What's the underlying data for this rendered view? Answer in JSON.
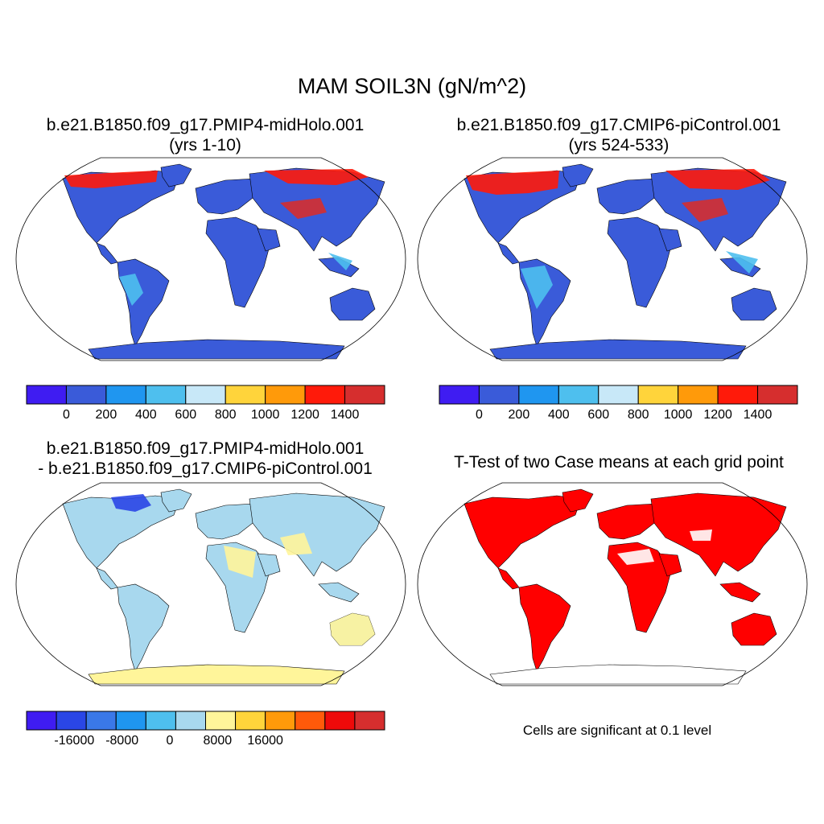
{
  "title": "MAM SOIL3N (gN/m^2)",
  "panels": [
    {
      "id": "midholo",
      "title_lines": [
        "b.e21.B1850.f09_g17.PMIP4-midHolo.001",
        "(yrs 1-10)"
      ],
      "colorbar": {
        "colors": [
          "#3f1cf2",
          "#3a5bd9",
          "#1f96f0",
          "#4ebfee",
          "#c8e8f8",
          "#ffd43b",
          "#ff9a0a",
          "#ff1a0a",
          "#d62e2e"
        ],
        "tick_labels": [
          "0",
          "200",
          "400",
          "600",
          "800",
          "1000",
          "1200",
          "1400"
        ]
      }
    },
    {
      "id": "picontrol",
      "title_lines": [
        "b.e21.B1850.f09_g17.CMIP6-piControl.001",
        "(yrs 524-533)"
      ],
      "colorbar": {
        "colors": [
          "#3f1cf2",
          "#3a5bd9",
          "#1f96f0",
          "#4ebfee",
          "#c8e8f8",
          "#ffd43b",
          "#ff9a0a",
          "#ff1a0a",
          "#d62e2e"
        ],
        "tick_labels": [
          "0",
          "200",
          "400",
          "600",
          "800",
          "1000",
          "1200",
          "1400"
        ]
      }
    },
    {
      "id": "difference",
      "title_lines": [
        "b.e21.B1850.f09_g17.PMIP4-midHolo.001",
        "- b.e21.B1850.f09_g17.CMIP6-piControl.001"
      ],
      "colorbar": {
        "colors": [
          "#3f1cf2",
          "#2a46e6",
          "#3a78e8",
          "#1f96f0",
          "#4ebfee",
          "#a8d8ee",
          "#fff59a",
          "#ffd43b",
          "#ff9a0a",
          "#ff5a0a",
          "#ee0a0a",
          "#d62e2e"
        ],
        "tick_labels": [
          "-16000",
          "-8000",
          "0",
          "8000",
          "16000"
        ]
      }
    },
    {
      "id": "ttest",
      "title_lines": [
        "T-Test of two Case means at each grid point"
      ],
      "note": "Cells are significant at 0.1 level"
    }
  ],
  "land_colors": {
    "midholo_base": "#3a5bd9",
    "picontrol_base": "#3a5bd9",
    "difference_base": "#a8d8ee",
    "difference_antarctica": "#fff59a",
    "ttest_significant": "#ff0000"
  }
}
